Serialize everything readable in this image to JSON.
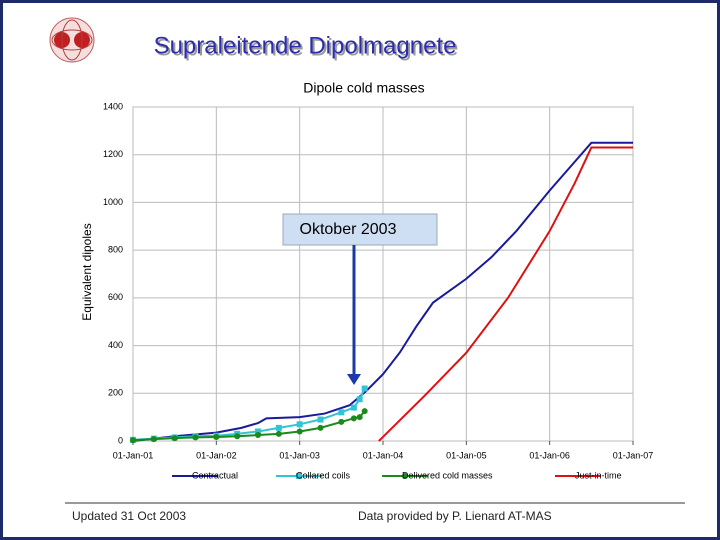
{
  "slide": {
    "title": "Supraleitende Dipolmagnete",
    "footer_left": "Updated 31 Oct 2003",
    "footer_right": "Data provided by P. Lienard AT-MAS"
  },
  "chart_data": {
    "type": "line",
    "title": "Dipole cold masses",
    "y_label": "Equivalent dipoles",
    "annotation": "Oktober 2003",
    "xlim": [
      2001,
      2007
    ],
    "xticks": [
      {
        "value": 2001,
        "label": "01-Jan-01"
      },
      {
        "value": 2002,
        "label": "01-Jan-02"
      },
      {
        "value": 2003,
        "label": "01-Jan-03"
      },
      {
        "value": 2004,
        "label": "01-Jan-04"
      },
      {
        "value": 2005,
        "label": "01-Jan-05"
      },
      {
        "value": 2006,
        "label": "01-Jan-06"
      },
      {
        "value": 2007,
        "label": "01-Jan-07"
      }
    ],
    "ylim": [
      0,
      1400
    ],
    "yticks": [
      0,
      200,
      400,
      600,
      800,
      1000,
      1200,
      1400
    ],
    "grid": true,
    "legend": "bottom",
    "series": [
      {
        "name": "Contractual",
        "color": "#1a1a9a",
        "marker": "none",
        "x": [
          2001,
          2001.5,
          2002,
          2002.3,
          2002.5,
          2002.6,
          2003,
          2003.3,
          2003.6,
          2003.8,
          2004,
          2004.2,
          2004.4,
          2004.6,
          2005,
          2005.3,
          2005.6,
          2006,
          2006.3,
          2006.5,
          2007
        ],
        "values": [
          0,
          20,
          35,
          55,
          75,
          95,
          100,
          115,
          150,
          210,
          280,
          370,
          480,
          580,
          680,
          770,
          880,
          1050,
          1170,
          1250,
          1250
        ]
      },
      {
        "name": "Collared coils",
        "color": "#33c4d4",
        "marker": "square",
        "x": [
          2001,
          2001.25,
          2001.5,
          2001.75,
          2002,
          2002.25,
          2002.5,
          2002.75,
          2003,
          2003.25,
          2003.5,
          2003.65,
          2003.72,
          2003.78
        ],
        "values": [
          5,
          10,
          15,
          20,
          22,
          30,
          40,
          55,
          70,
          90,
          120,
          140,
          175,
          220
        ]
      },
      {
        "name": "Delivered cold masses",
        "color": "#1a8a1a",
        "marker": "circle",
        "x": [
          2001,
          2001.25,
          2001.5,
          2001.75,
          2002,
          2002.25,
          2002.5,
          2002.75,
          2003,
          2003.25,
          2003.5,
          2003.65,
          2003.72,
          2003.78
        ],
        "values": [
          3,
          8,
          12,
          15,
          17,
          20,
          25,
          30,
          40,
          55,
          80,
          95,
          100,
          125
        ]
      },
      {
        "name": "Just-in-time",
        "color": "#dd1111",
        "marker": "none",
        "x": [
          2003.95,
          2004.5,
          2005,
          2005.5,
          2006,
          2006.3,
          2006.5,
          2007
        ],
        "values": [
          0,
          190,
          370,
          600,
          880,
          1080,
          1230,
          1230
        ]
      }
    ]
  }
}
